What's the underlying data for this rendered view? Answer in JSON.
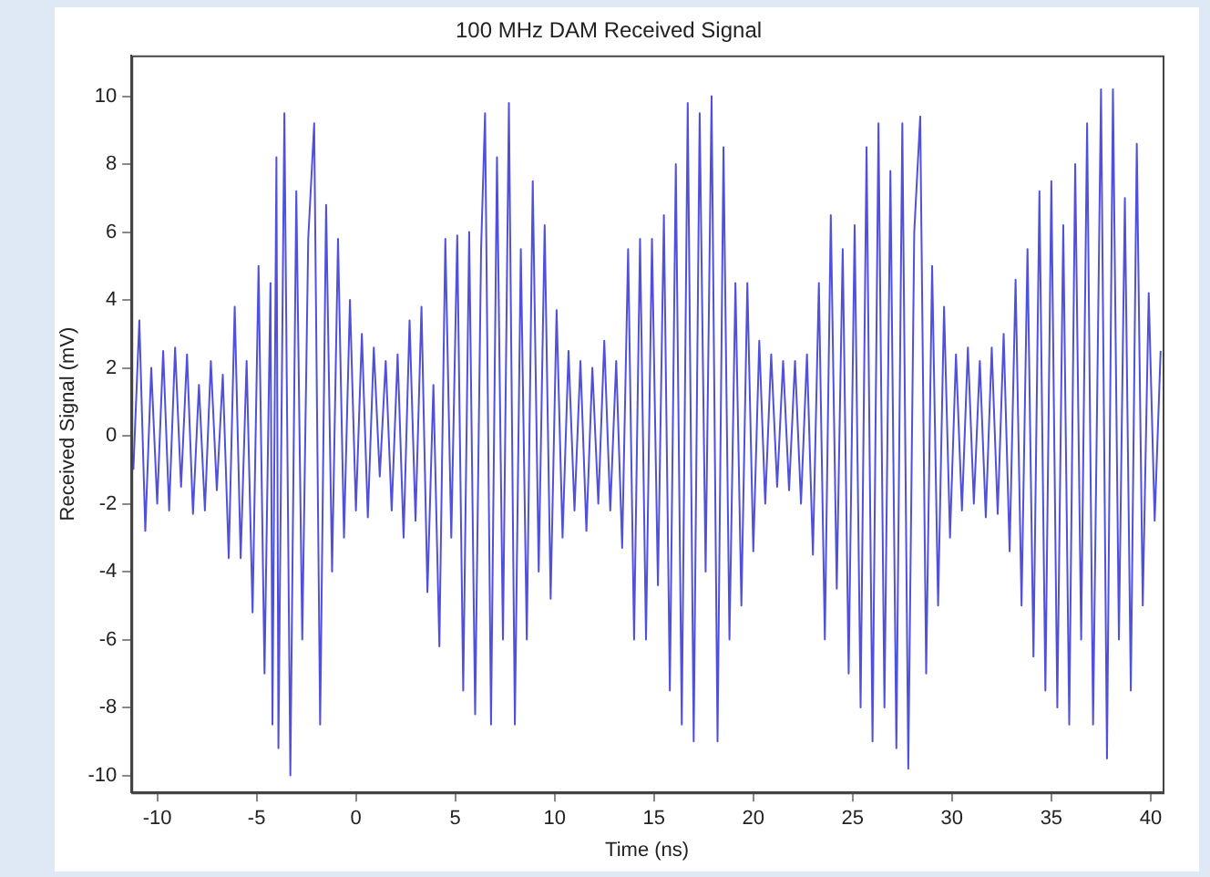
{
  "chart_data": {
    "type": "line",
    "title": "100 MHz DAM Received Signal",
    "xlabel": "Time (ns)",
    "ylabel": "Received Signal (mV)",
    "color": "#5050dc",
    "marker": "none",
    "grid": false,
    "x": [
      -11.2,
      -10.9,
      -10.6,
      -10.3,
      -10,
      -9.7,
      -9.4,
      -9.1,
      -8.8,
      -8.5,
      -8.2,
      -7.9,
      -7.6,
      -7.3,
      -7,
      -6.7,
      -6.4,
      -6.1,
      -5.8,
      -5.5,
      -5.2,
      -4.9,
      -4.6,
      -4.3,
      -4.2,
      -4,
      -3.9,
      -3.6,
      -3.3,
      -3,
      -2.7,
      -2.4,
      -2.1,
      -1.8,
      -1.5,
      -1.2,
      -0.9,
      -0.6,
      -0.3,
      0,
      0.3,
      0.6,
      0.9,
      1.2,
      1.5,
      1.8,
      2.1,
      2.4,
      2.7,
      3,
      3.3,
      3.6,
      3.9,
      4.2,
      4.5,
      4.8,
      5.1,
      5.4,
      5.7,
      6,
      6.3,
      6.5,
      6.8,
      7.1,
      7.4,
      7.7,
      8,
      8.3,
      8.6,
      8.9,
      9.2,
      9.5,
      9.8,
      10.1,
      10.4,
      10.7,
      11,
      11.3,
      11.6,
      11.9,
      12.2,
      12.5,
      12.8,
      13.1,
      13.4,
      13.7,
      14,
      14.3,
      14.6,
      14.9,
      15.2,
      15.5,
      15.8,
      16.1,
      16.4,
      16.7,
      17,
      17.3,
      17.6,
      17.9,
      18.2,
      18.5,
      18.8,
      19.1,
      19.4,
      19.7,
      20,
      20.3,
      20.6,
      20.9,
      21.2,
      21.5,
      21.8,
      22.1,
      22.4,
      22.7,
      23,
      23.3,
      23.6,
      23.9,
      24.2,
      24.5,
      24.8,
      25.1,
      25.4,
      25.7,
      26,
      26.3,
      26.6,
      26.9,
      27.2,
      27.5,
      27.8,
      28.1,
      28.4,
      28.7,
      29,
      29.3,
      29.6,
      29.9,
      30.2,
      30.5,
      30.8,
      31.1,
      31.4,
      31.7,
      32,
      32.3,
      32.6,
      32.9,
      33.2,
      33.5,
      33.8,
      34.1,
      34.4,
      34.7,
      35,
      35.3,
      35.6,
      35.9,
      36.2,
      36.5,
      36.8,
      37.1,
      37.5,
      37.8,
      38.1,
      38.4,
      38.7,
      39,
      39.3,
      39.6,
      39.9,
      40.2,
      40.5
    ],
    "values": [
      -1,
      3.4,
      -2.8,
      2,
      -2,
      2.5,
      -2.2,
      2.6,
      -1.5,
      2.4,
      -2.3,
      1.5,
      -2.2,
      2.2,
      -1.6,
      1.8,
      -3.6,
      3.8,
      -3.6,
      2.2,
      -5.2,
      5,
      -7,
      4.5,
      -8.5,
      8.2,
      -9.2,
      9.5,
      -10,
      7.2,
      -6,
      5.8,
      9.2,
      -8.5,
      6.8,
      -4,
      5.8,
      -3,
      4,
      -2.2,
      3,
      -2.4,
      2.6,
      -1.2,
      2.2,
      -2.2,
      2.4,
      -3,
      3.4,
      -2.5,
      3.8,
      -4.6,
      1.5,
      -6.2,
      5.8,
      -3,
      5.9,
      -7.5,
      6,
      -8.2,
      5.5,
      9.5,
      -8.5,
      8.2,
      -6,
      9.8,
      -8.5,
      5.5,
      -6,
      7.5,
      -4,
      6.2,
      -4.8,
      3.7,
      -3,
      2.5,
      -2.2,
      2.2,
      -2.8,
      2,
      -2,
      2.8,
      -2.2,
      2.2,
      -3.3,
      5.5,
      -6,
      5.8,
      -6,
      5.8,
      -4.4,
      6.5,
      -7.5,
      8,
      -8.5,
      9.8,
      -9,
      9.5,
      -4,
      10,
      -9,
      8.5,
      -6,
      4.5,
      -5,
      4.5,
      -3.4,
      2.8,
      -2,
      2.4,
      -1.5,
      2.2,
      -1.6,
      2.2,
      -2,
      2.4,
      -3.5,
      4.5,
      -6,
      6.5,
      -4.5,
      5.5,
      -7,
      6.2,
      -8,
      8.5,
      -9,
      9.2,
      -8,
      7.8,
      -9.2,
      9.2,
      -9.8,
      6,
      9.4,
      -7,
      5,
      -5,
      3.8,
      -3,
      2.4,
      -2.2,
      2.6,
      -2,
      2.2,
      -2.4,
      2.6,
      -2.3,
      3,
      -3.4,
      4.6,
      -5,
      5.5,
      -6.5,
      7.2,
      -7.5,
      7.5,
      -8,
      6.2,
      -8.5,
      8,
      -6,
      9.2,
      -8.5,
      10.2,
      -9.5,
      10.2,
      -6,
      7,
      -7.5,
      8.6,
      -5,
      4.2,
      -2.5,
      2.5
    ],
    "xlim": [
      -11.3,
      40.6
    ],
    "xticks": [
      -10,
      -5,
      0,
      5,
      10,
      15,
      20,
      25,
      30,
      35,
      40
    ],
    "ylim": [
      -10.5,
      11.2
    ],
    "yticks": [
      -10,
      -8,
      -6,
      -4,
      -2,
      0,
      2,
      4,
      6,
      8,
      10
    ]
  }
}
